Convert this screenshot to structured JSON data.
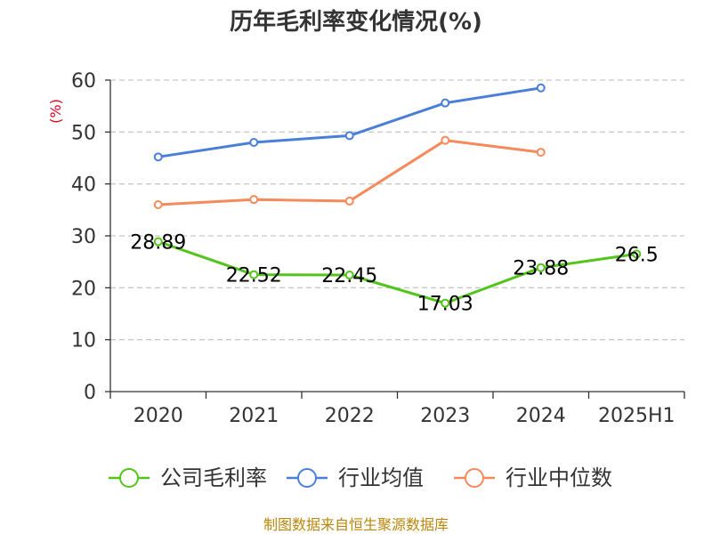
{
  "chart_data": {
    "type": "line",
    "title": "历年毛利率变化情况(%)",
    "ylabel": "(%)",
    "xlabel": "",
    "categories": [
      "2020",
      "2021",
      "2022",
      "2023",
      "2024",
      "2025H1"
    ],
    "ylim": [
      0,
      60
    ],
    "yticks": [
      0,
      10,
      20,
      30,
      40,
      50,
      60
    ],
    "grid": true,
    "legend_position": "bottom",
    "series": [
      {
        "name": "公司毛利率",
        "color": "#52c41a",
        "show_labels": true,
        "values": [
          28.89,
          22.52,
          22.45,
          17.03,
          23.88,
          26.5
        ],
        "labels": [
          "28.89",
          "22.52",
          "22.45",
          "17.03",
          "23.88",
          "26.5"
        ]
      },
      {
        "name": "行业均值",
        "color": "#4a7fd9",
        "show_labels": false,
        "values": [
          45.2,
          48.0,
          49.3,
          55.6,
          58.5,
          null
        ]
      },
      {
        "name": "行业中位数",
        "color": "#f58a5b",
        "show_labels": false,
        "values": [
          36.0,
          37.0,
          36.7,
          48.4,
          46.1,
          null
        ]
      }
    ]
  },
  "footer": {
    "source": "制图数据来自恒生聚源数据库"
  }
}
